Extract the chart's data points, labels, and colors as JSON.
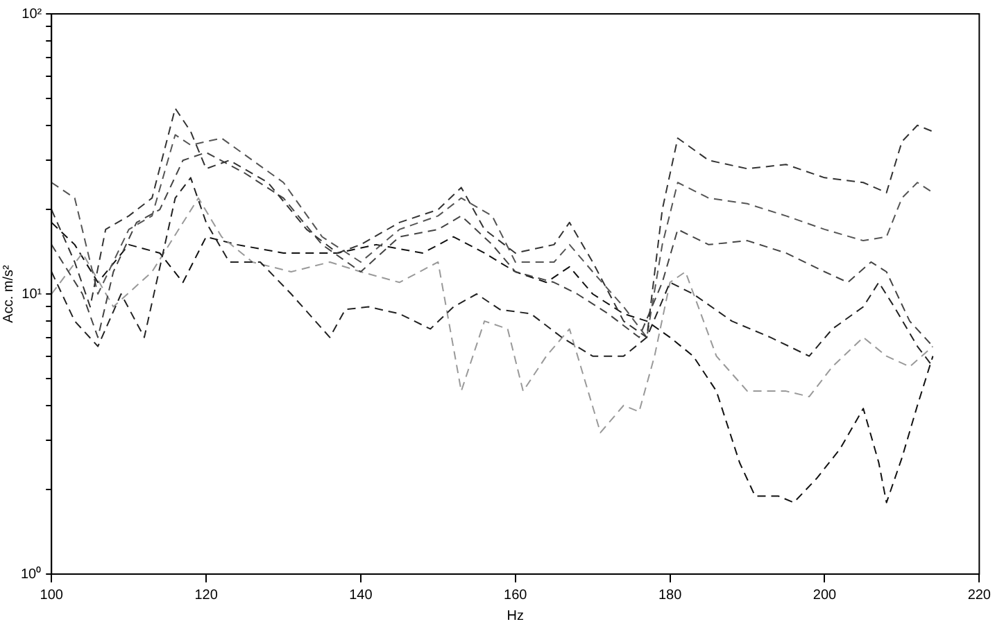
{
  "chart_data": {
    "type": "line",
    "xlabel": "Hz",
    "ylabel": "Acc. m/s²",
    "log": "y",
    "grid": false,
    "legend": false,
    "marker": "none",
    "line_style": "dashed",
    "xlim": [
      100,
      220
    ],
    "xticks": [
      100,
      120,
      140,
      160,
      180,
      200,
      220
    ],
    "ylim": [
      1,
      100
    ],
    "yticks": [
      {
        "value": 1,
        "label": "10⁰"
      },
      {
        "value": 2,
        "label": null
      },
      {
        "value": 3,
        "label": null
      },
      {
        "value": 4,
        "label": null
      },
      {
        "value": 5,
        "label": null
      },
      {
        "value": 6,
        "label": null
      },
      {
        "value": 7,
        "label": null
      },
      {
        "value": 8,
        "label": null
      },
      {
        "value": 9,
        "label": null
      },
      {
        "value": 10,
        "label": "10¹"
      },
      {
        "value": 20,
        "label": null
      },
      {
        "value": 30,
        "label": null
      },
      {
        "value": 40,
        "label": null
      },
      {
        "value": 50,
        "label": null
      },
      {
        "value": 60,
        "label": null
      },
      {
        "value": 70,
        "label": null
      },
      {
        "value": 80,
        "label": null
      },
      {
        "value": 90,
        "label": null
      },
      {
        "value": 100,
        "label": "10²"
      }
    ],
    "series": [
      {
        "color": "#333333",
        "x": [
          100,
          103,
          105,
          107,
          110,
          113,
          116,
          118,
          120,
          123,
          128,
          133,
          137,
          140,
          145,
          150,
          153,
          156,
          160,
          165,
          167,
          170,
          174,
          177,
          179,
          181,
          185,
          190,
          195,
          200,
          205,
          208,
          210,
          212,
          214
        ],
        "values": [
          20,
          13,
          9,
          17,
          19,
          22,
          46,
          38,
          28,
          30,
          25,
          17,
          14,
          15,
          18,
          20,
          24,
          17,
          14,
          15,
          18,
          13,
          8,
          7,
          20,
          36,
          30,
          28,
          29,
          26,
          25,
          23,
          35,
          40,
          38
        ]
      },
      {
        "color": "#555555",
        "x": [
          100,
          103,
          106,
          110,
          113,
          116,
          118,
          122,
          126,
          130,
          135,
          140,
          145,
          150,
          153,
          157,
          160,
          165,
          167,
          170,
          174,
          177,
          179,
          181,
          185,
          190,
          195,
          200,
          205,
          208,
          210,
          212,
          214
        ],
        "values": [
          25,
          22,
          10,
          17,
          19,
          37,
          34,
          36,
          30,
          25,
          16,
          13,
          17,
          19,
          22,
          19,
          13,
          13,
          15,
          12,
          9,
          7,
          15,
          25,
          22,
          21,
          19,
          17,
          15.5,
          16,
          22,
          25,
          23
        ]
      },
      {
        "color": "#444444",
        "x": [
          100,
          104,
          106,
          108,
          111,
          114,
          117,
          120,
          125,
          130,
          135,
          140,
          145,
          150,
          153,
          157,
          160,
          165,
          168,
          172,
          176,
          179,
          181,
          185,
          190,
          195,
          200,
          203,
          206,
          208,
          211,
          214
        ],
        "values": [
          15,
          10,
          7,
          12,
          18,
          20,
          30,
          32,
          27,
          22,
          15,
          12,
          16,
          17,
          19,
          15,
          12,
          11,
          10,
          8.5,
          7,
          11,
          17,
          15,
          15.5,
          14,
          12,
          11,
          13,
          12,
          8,
          6.5
        ]
      },
      {
        "color": "#222222",
        "x": [
          100,
          103,
          106,
          109,
          112,
          116,
          118,
          120,
          123,
          127,
          131,
          136,
          138,
          141,
          145,
          149,
          152,
          155,
          158,
          162,
          166,
          170,
          174,
          177,
          180,
          183,
          188,
          193,
          198,
          201,
          205,
          207,
          209,
          212,
          214
        ],
        "values": [
          12,
          8,
          6.5,
          10,
          7,
          22,
          26,
          18,
          13,
          13,
          10,
          7,
          8.8,
          9,
          8.5,
          7.5,
          9,
          10,
          8.8,
          8.5,
          7,
          6,
          6,
          7,
          11,
          10,
          8,
          7,
          6,
          7.5,
          9,
          11,
          9,
          6.5,
          5.5
        ]
      },
      {
        "color": "#999999",
        "x": [
          100,
          104,
          108,
          113,
          119,
          122,
          126,
          131,
          136,
          140,
          145,
          150,
          153,
          156,
          159,
          161,
          164,
          167,
          171,
          174,
          176,
          178,
          180,
          182,
          186,
          190,
          195,
          198,
          201,
          205,
          208,
          211,
          214
        ],
        "values": [
          10,
          14,
          9,
          12,
          22,
          16,
          13,
          12,
          13,
          12,
          11,
          13,
          4.5,
          8,
          7.5,
          4.5,
          6,
          7.5,
          3.2,
          4,
          3.8,
          6,
          11,
          12,
          6,
          4.5,
          4.5,
          4.3,
          5.5,
          7,
          6,
          5.5,
          6.5
        ]
      },
      {
        "color": "#111111",
        "x": [
          100,
          103,
          106,
          110,
          114,
          117,
          120,
          124,
          130,
          137,
          142,
          148,
          152,
          156,
          160,
          164,
          167,
          170,
          174,
          177,
          180,
          183,
          186,
          189,
          191,
          194,
          196,
          199,
          202,
          205,
          207,
          208,
          210,
          212,
          214
        ],
        "values": [
          18,
          15,
          11,
          15,
          14,
          11,
          16,
          15,
          14,
          14,
          15,
          14,
          16,
          14,
          12,
          11,
          12.5,
          10,
          8.5,
          8,
          7,
          6,
          4.5,
          2.5,
          1.9,
          1.9,
          1.8,
          2.2,
          2.8,
          3.9,
          2.5,
          1.8,
          2.6,
          4,
          6
        ]
      }
    ]
  }
}
